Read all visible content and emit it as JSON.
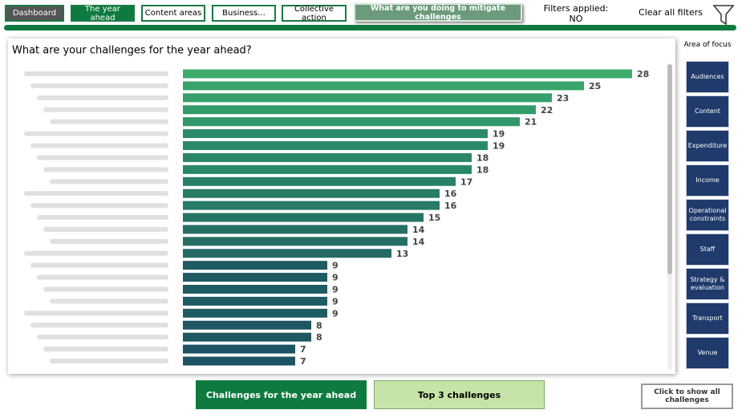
{
  "nav": {
    "buttons": [
      "Dashboard",
      "The year ahead",
      "Content areas",
      "Business...",
      "Collective action",
      "What are you doing to mitigate challenges"
    ],
    "filters_status": "Filters applied: NO",
    "clear_filters": "Clear all filters"
  },
  "side_panel": {
    "title": "Area of focus",
    "buttons": [
      "Audiences",
      "Content",
      "Expenditure",
      "Income",
      "Operational constraints",
      "Staff",
      "Strategy & evaluation",
      "Transport",
      "Venue"
    ]
  },
  "bottom": {
    "tabs": [
      "Challenges for the year ahead",
      "Top 3 challenges"
    ],
    "show_all": "Click to show all challenges"
  },
  "chart_data": {
    "type": "hbar",
    "title": "What are your challenges for the year ahead?",
    "categories": [
      null,
      null,
      null,
      null,
      null,
      null,
      null,
      null,
      null,
      null,
      null,
      null,
      null,
      null,
      null,
      null,
      null,
      null,
      null,
      null,
      null,
      null,
      null,
      null,
      null
    ],
    "values": [
      28,
      25,
      23,
      22,
      21,
      19,
      19,
      18,
      18,
      17,
      16,
      16,
      15,
      14,
      14,
      13,
      9,
      9,
      9,
      9,
      9,
      8,
      8,
      7,
      7
    ],
    "colors": [
      "#3dab6b",
      "#38a46b",
      "#35a06a",
      "#339c6a",
      "#30976a",
      "#2b8b69",
      "#2b8b69",
      "#2a8668",
      "#2a8668",
      "#288067",
      "#267a66",
      "#267a66",
      "#257466",
      "#246e66",
      "#246e66",
      "#236a65",
      "#1f5b63",
      "#1f5b63",
      "#1f5b63",
      "#1f5b63",
      "#1f5b63",
      "#1e5662",
      "#1e5662",
      "#1d5362",
      "#1d5362"
    ]
  }
}
